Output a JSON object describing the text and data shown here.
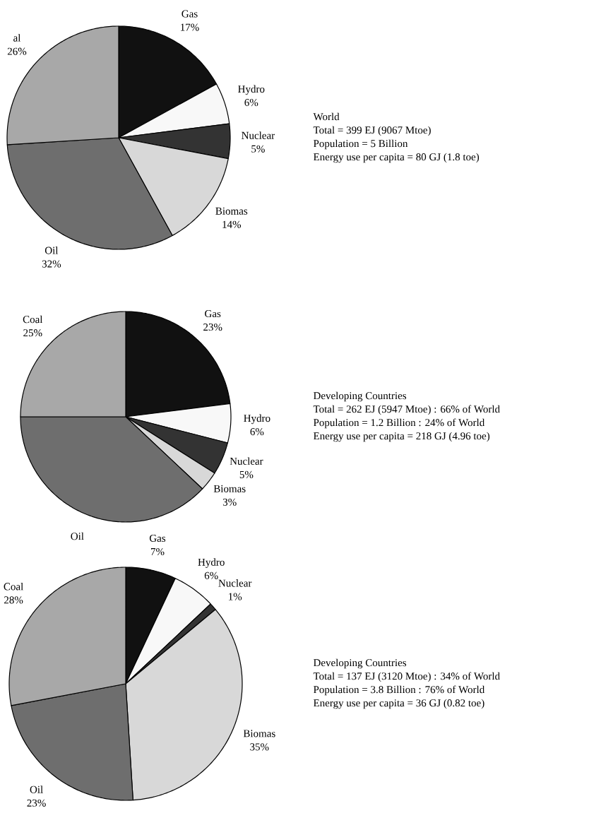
{
  "chart_data": [
    {
      "type": "pie",
      "title": "World",
      "annotations": [
        "Total = 399 EJ (9067 Mtoe)",
        "Population = 5 Billion",
        "Energy use per capita = 80 GJ (1.8 toe)"
      ],
      "categories": [
        "Gas",
        "Hydro",
        "Nuclear",
        "Biomas",
        "Oil",
        "al"
      ],
      "values": [
        17,
        6,
        5,
        14,
        32,
        26
      ],
      "value_labels": [
        "17%",
        "6%",
        "5%",
        "14%",
        "32%",
        "26%"
      ],
      "colors": [
        "#111111",
        "#f8f8f8",
        "#333333",
        "#d8d8d8",
        "#6e6e6e",
        "#a8a8a8"
      ]
    },
    {
      "type": "pie",
      "title": "Developing Countries",
      "annotations": [
        "Total = 262 EJ (5947 Mtoe) : 66% of World",
        "Population = 1.2 Billion : 24% of World",
        "Energy use per capita = 218 GJ (4.96 toe)"
      ],
      "categories": [
        "Gas",
        "Hydro",
        "Nuclear",
        "Biomas",
        "Oil",
        "Coal"
      ],
      "values": [
        23,
        6,
        5,
        3,
        38,
        25
      ],
      "value_labels": [
        "23%",
        "6%",
        "5%",
        "3%",
        null,
        "25%"
      ],
      "colors": [
        "#111111",
        "#f8f8f8",
        "#333333",
        "#d8d8d8",
        "#6e6e6e",
        "#a8a8a8"
      ]
    },
    {
      "type": "pie",
      "title": "Developing Countries",
      "annotations": [
        "Total = 137 EJ (3120 Mtoe) : 34% of World",
        "Population = 3.8 Billion : 76% of World",
        "Energy use per capita = 36 GJ (0.82 toe)"
      ],
      "categories": [
        "Gas",
        "Hydro",
        "Nuclear",
        "Biomas",
        "Oil",
        "Coal"
      ],
      "values": [
        7,
        6,
        1,
        35,
        23,
        28
      ],
      "value_labels": [
        "7%",
        "6%",
        "1%",
        "35%",
        "23%",
        "28%"
      ],
      "colors": [
        "#111111",
        "#f8f8f8",
        "#333333",
        "#d8d8d8",
        "#6e6e6e",
        "#a8a8a8"
      ]
    }
  ]
}
